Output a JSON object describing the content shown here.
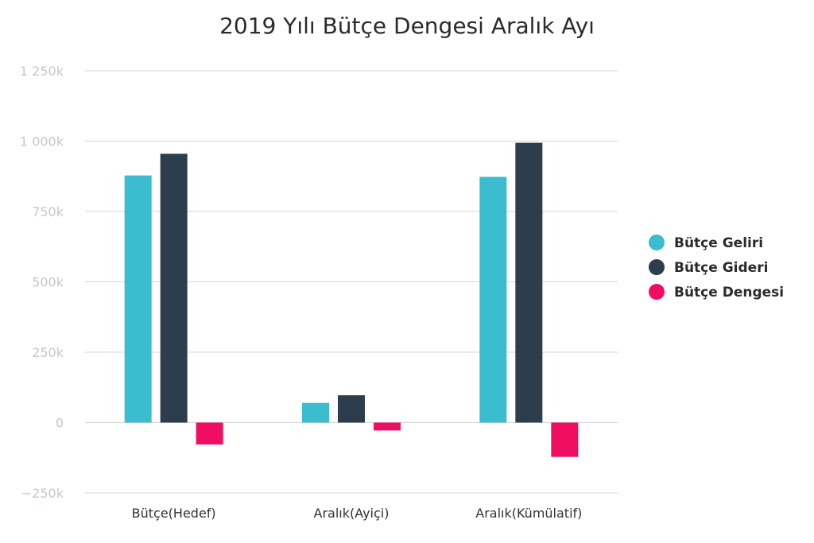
{
  "chart_data": {
    "type": "bar",
    "title": "2019 Yılı Bütçe Dengesi Aralık Ayı",
    "categories": [
      "Bütçe(Hedef)",
      "Aralık(Ayiçi)",
      "Aralık(Kümülatif)"
    ],
    "series": [
      {
        "name": "Bütçe Geliri",
        "color": "#3cbccf",
        "values": [
          878,
          70,
          873
        ]
      },
      {
        "name": "Bütçe Gideri",
        "color": "#2c3e4d",
        "values": [
          955,
          97,
          994
        ]
      },
      {
        "name": "Bütçe Dengesi",
        "color": "#ef0e62",
        "values": [
          -78,
          -28,
          -122
        ]
      }
    ],
    "ylim": [
      -250,
      1250
    ],
    "yticks": [
      -250,
      0,
      250,
      500,
      750,
      1000,
      1250
    ],
    "ytick_labels": [
      "−250k",
      "0",
      "250k",
      "500k",
      "750k",
      "1 000k",
      "1 250k"
    ],
    "unit": "k",
    "grid": true,
    "legend_position": "right"
  }
}
